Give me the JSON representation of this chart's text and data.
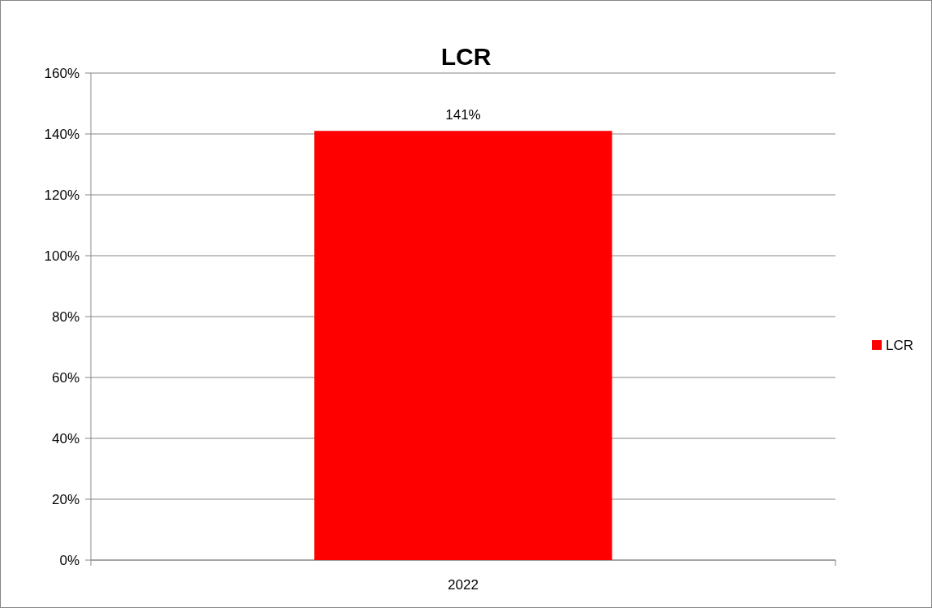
{
  "chart_data": {
    "type": "bar",
    "title": "LCR",
    "categories": [
      "2022"
    ],
    "series": [
      {
        "name": "LCR",
        "color": "#ff0000",
        "values": [
          141
        ],
        "value_labels": [
          "141%"
        ]
      }
    ],
    "ylim": [
      0,
      160
    ],
    "yticks": [
      {
        "value": 0,
        "label": "0%"
      },
      {
        "value": 20,
        "label": "20%"
      },
      {
        "value": 40,
        "label": "40%"
      },
      {
        "value": 60,
        "label": "60%"
      },
      {
        "value": 80,
        "label": "80%"
      },
      {
        "value": 100,
        "label": "100%"
      },
      {
        "value": 120,
        "label": "120%"
      },
      {
        "value": 140,
        "label": "140%"
      },
      {
        "value": 160,
        "label": "160%"
      }
    ],
    "grid": "y",
    "legend": "right"
  }
}
